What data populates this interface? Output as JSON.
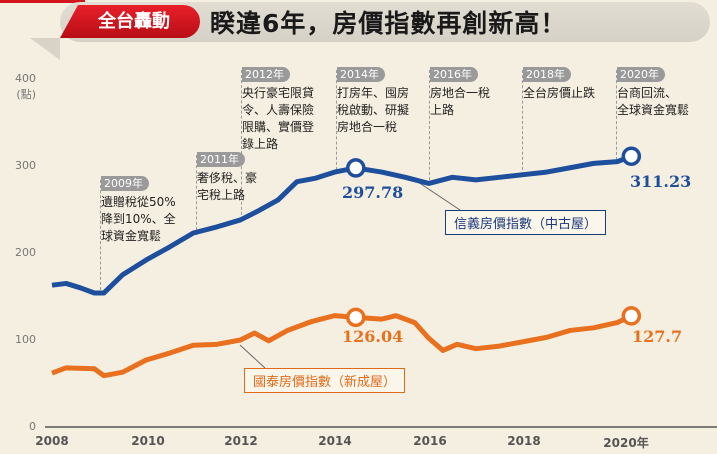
{
  "header": {
    "badge": "全台轟動",
    "title": "睽違6年，房價指數再創新高！"
  },
  "chart_data": {
    "type": "line",
    "title": "睽違6年，房價指數再創新高！",
    "ylabel": "(點)",
    "ylim": [
      0,
      400
    ],
    "yticks": [
      "0",
      "100",
      "200",
      "300",
      "400"
    ],
    "xlim": [
      2008,
      2021.8
    ],
    "xticks": [
      "2008",
      "2010",
      "2012",
      "2014",
      "2016",
      "2018",
      "2020年"
    ],
    "grid": false,
    "colors": {
      "xinyi": "#1e4f9c",
      "cathay": "#e8701e"
    },
    "series": [
      {
        "name": "信義房價指數（中古屋）",
        "x": [
          2008.0,
          2008.3,
          2008.6,
          2008.9,
          2009.1,
          2009.5,
          2010.0,
          2010.5,
          2011.0,
          2011.5,
          2012.0,
          2012.4,
          2012.8,
          2013.2,
          2013.6,
          2014.0,
          2014.45,
          2015.0,
          2015.5,
          2016.0,
          2016.5,
          2017.0,
          2017.5,
          2018.0,
          2018.5,
          2019.0,
          2019.5,
          2020.0,
          2020.3
        ],
        "y": [
          163,
          165,
          160,
          154,
          154,
          175,
          192,
          207,
          223,
          230,
          238,
          249,
          261,
          282,
          286,
          293,
          297.78,
          293,
          287,
          280,
          287,
          284,
          287,
          290,
          293,
          298,
          303,
          305,
          311.23
        ],
        "highlight": [
          {
            "x": 2014.45,
            "label": "297.78"
          },
          {
            "x": 2020.3,
            "label": "311.23"
          }
        ]
      },
      {
        "name": "國泰房價指數（新成屋）",
        "x": [
          2008.0,
          2008.3,
          2008.9,
          2009.1,
          2009.5,
          2010.0,
          2010.5,
          2011.0,
          2011.5,
          2012.0,
          2012.3,
          2012.6,
          2013.0,
          2013.5,
          2014.0,
          2014.45,
          2015.0,
          2015.3,
          2015.7,
          2016.0,
          2016.3,
          2016.6,
          2017.0,
          2017.5,
          2018.0,
          2018.5,
          2019.0,
          2019.5,
          2020.0,
          2020.3
        ],
        "y": [
          62,
          68,
          67,
          59,
          63,
          77,
          85,
          94,
          95,
          100,
          108,
          99,
          111,
          121,
          128,
          126.04,
          124,
          128,
          120,
          102,
          88,
          95,
          90,
          93,
          98,
          103,
          111,
          114,
          120,
          127.7
        ],
        "highlight": [
          {
            "x": 2014.45,
            "label": "126.04"
          },
          {
            "x": 2020.3,
            "label": "127.7"
          }
        ]
      }
    ],
    "annotations": [
      {
        "year": "2009年",
        "text": "遺贈稅從50%\n降到10%、全\n球資金寬鬆"
      },
      {
        "year": "2011年",
        "text": "奢侈稅、豪\n宅稅上路"
      },
      {
        "year": "2012年",
        "text": "央行豪宅限貸\n令、人壽保險\n限購、實價登\n錄上路"
      },
      {
        "year": "2014年",
        "text": "打房年、囤房\n稅啟動、研擬\n房地合一稅"
      },
      {
        "year": "2016年",
        "text": "房地合一稅\n上路"
      },
      {
        "year": "2018年",
        "text": "全台房價止跌"
      },
      {
        "year": "2020年",
        "text": "台商回流、\n全球資金寬鬆"
      }
    ]
  }
}
